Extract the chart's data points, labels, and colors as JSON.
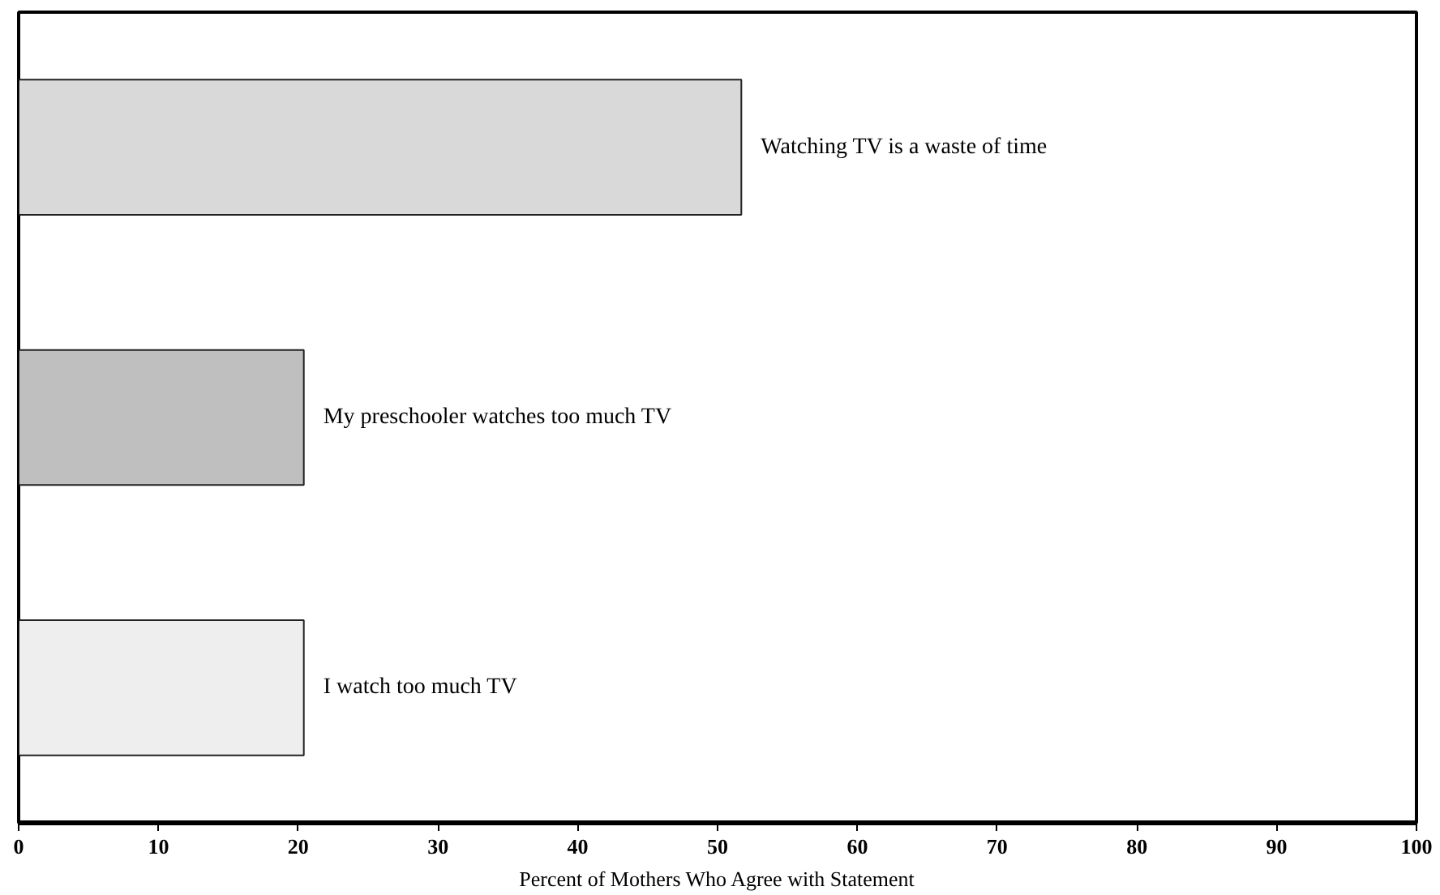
{
  "chart_data": {
    "type": "bar",
    "orientation": "horizontal",
    "categories": [
      "Watching TV is a waste of time",
      "My preschooler watches too much TV",
      "I watch too much TV"
    ],
    "values": [
      51.7,
      20.4,
      20.4
    ],
    "colors": [
      "#d9d9d9",
      "#bfbfbf",
      "#eeeeee"
    ],
    "xlabel": "Percent of Mothers Who Agree with Statement",
    "xlim": [
      0,
      100
    ],
    "xticks": [
      0,
      10,
      20,
      30,
      40,
      50,
      60,
      70,
      80,
      90,
      100
    ],
    "tick_labels": "x"
  }
}
